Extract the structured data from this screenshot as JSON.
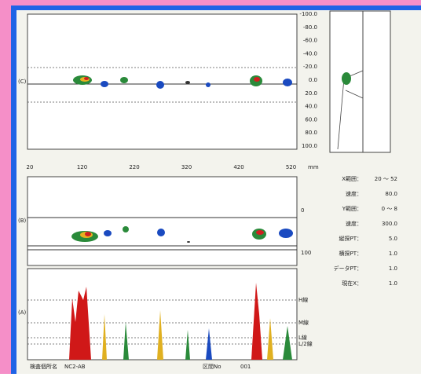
{
  "scan_c": {
    "label": "(C)",
    "scale_labels": [
      "-100.0",
      "-80.0",
      "-60.0",
      "-40.0",
      "-20.0",
      "0.0",
      "20.0",
      "40.0",
      "60.0",
      "80.0",
      "100.0"
    ]
  },
  "x_axis": {
    "ticks": [
      "20",
      "120",
      "220",
      "320",
      "420",
      "520"
    ],
    "unit": "mm"
  },
  "scan_b": {
    "label": "(B)",
    "scale_labels": [
      "0",
      "100"
    ]
  },
  "scan_a": {
    "label": "(A)",
    "level_labels": [
      "H線",
      "M線",
      "L線",
      "L/2線"
    ]
  },
  "info": [
    {
      "label": "X範囲：",
      "value": "20 ～ 52"
    },
    {
      "label": "速度：",
      "value": "80.0"
    },
    {
      "label": "Y範囲：",
      "value": "0 ～ 8"
    },
    {
      "label": "速度：",
      "value": "300.0"
    },
    {
      "label": "縦探PT：",
      "value": "5.0"
    },
    {
      "label": "横探PT：",
      "value": "1.0"
    },
    {
      "label": "データPT：",
      "value": "1.0"
    },
    {
      "label": "現在X：",
      "value": "1.0"
    }
  ],
  "footer": {
    "location_label": "検査個所名",
    "location": "NC2-AB",
    "section_label": "区間No",
    "section": "001"
  }
}
